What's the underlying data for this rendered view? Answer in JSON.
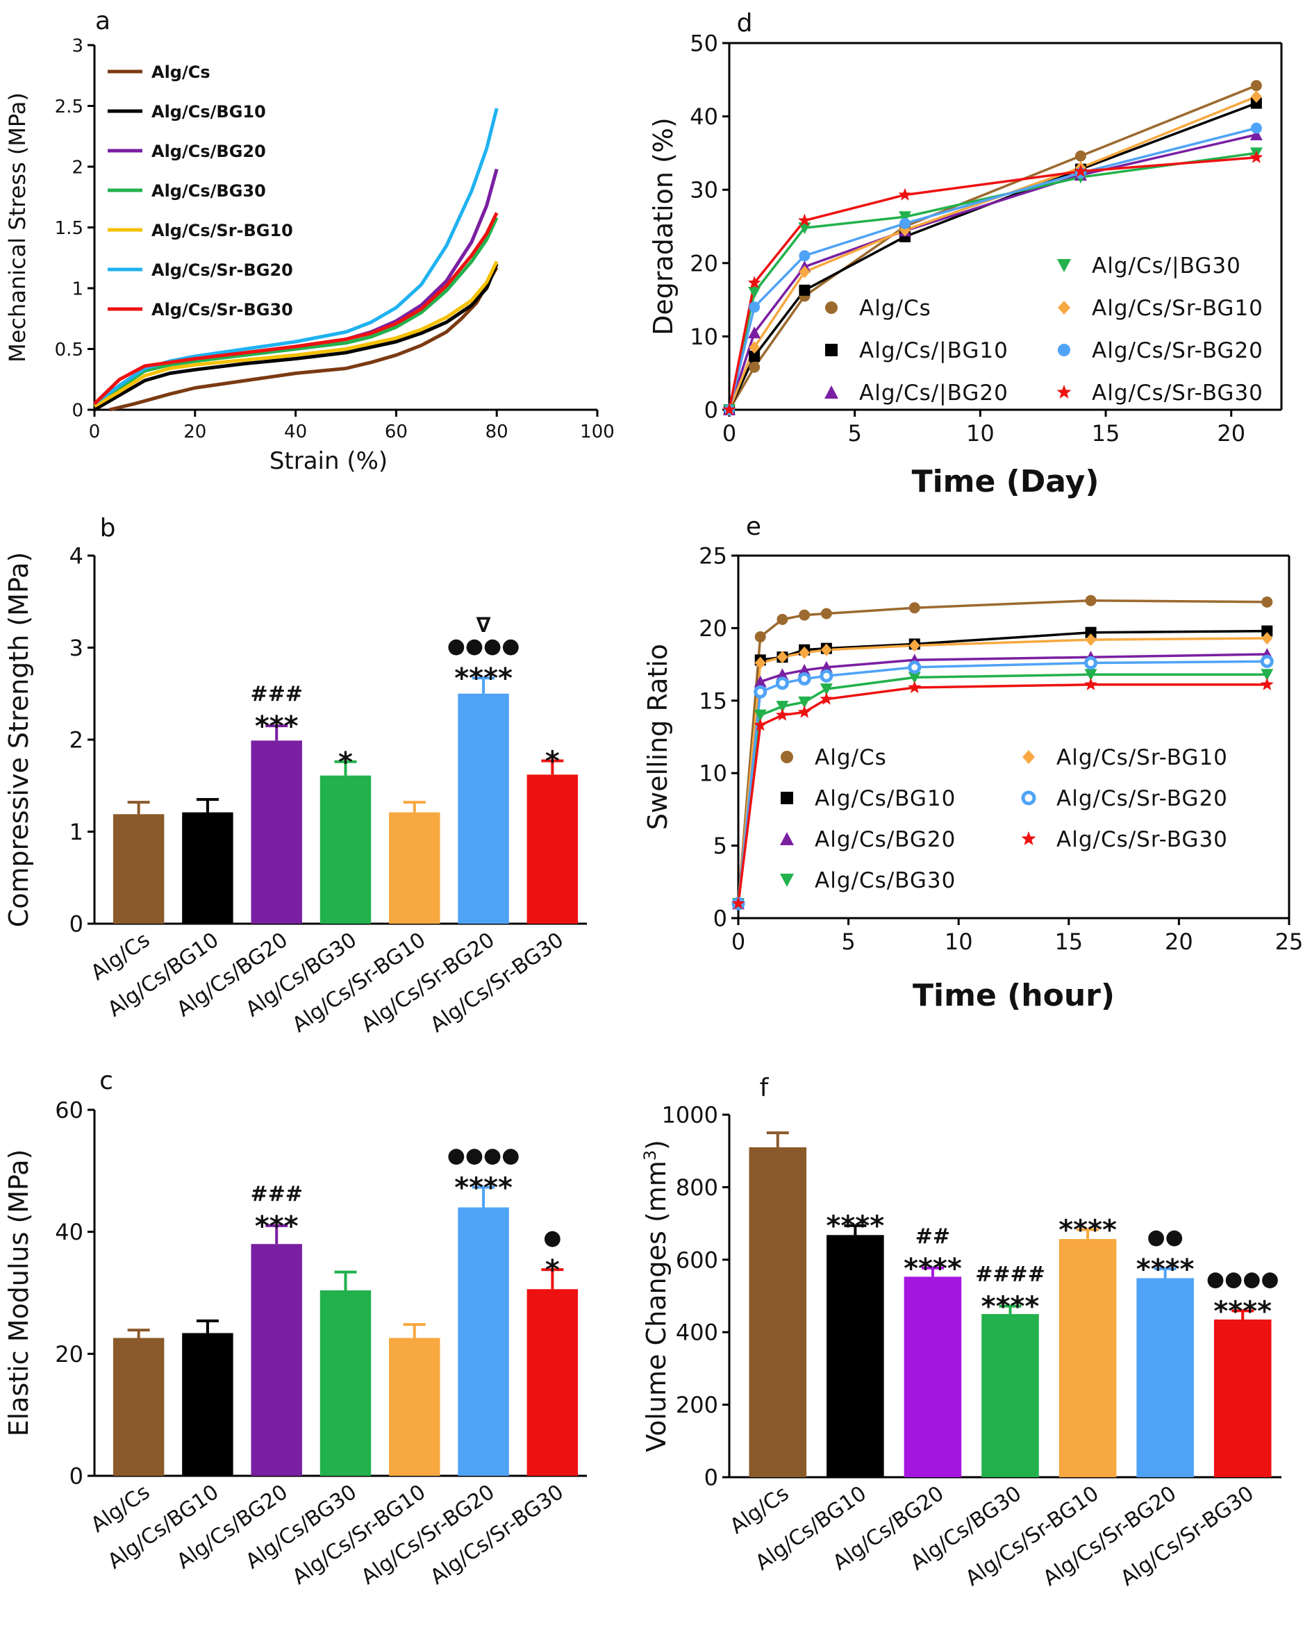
{
  "colors": {
    "Alg/Cs": "#8B5A2B",
    "Alg/Cs/BG10": "#000000",
    "Alg/Cs/BG20": "#7A1FA2",
    "Alg/Cs/BG30": "#22B14C",
    "Alg/Cs/Sr-BG10": "#F7A840",
    "Alg/Cs/Sr-BG20": "#4FA3F7",
    "Alg/Cs/Sr-BG30": "#EE1111",
    "stressLineBrown": "#7B3A12",
    "stressLineYellow": "#F5C000",
    "stressLineBlue": "#1FB2F0",
    "degradeBrown": "#9C6A2E",
    "f_BG20": "#A516E0"
  },
  "chart_data": [
    {
      "id": "a",
      "panel_label": "a",
      "type": "line",
      "xlabel": "Strain (%)",
      "ylabel": "Mechanical Stress (MPa)",
      "xlim": [
        0,
        100
      ],
      "ylim": [
        0,
        3
      ],
      "xticks": [
        "0",
        "20",
        "40",
        "60",
        "80",
        "100"
      ],
      "yticks": [
        "0",
        "0.5",
        "1",
        "1.5",
        "2",
        "2.5",
        "3"
      ],
      "legend": [
        "Alg/Cs",
        "Alg/Cs/BG10",
        "Alg/Cs/BG20",
        "Alg/Cs/BG30",
        "Alg/Cs/Sr-BG10",
        "Alg/Cs/Sr-BG20",
        "Alg/Cs/Sr-BG30"
      ],
      "series": [
        {
          "name": "Alg/Cs",
          "color_key": "stressLineBrown",
          "x": [
            3,
            8,
            15,
            20,
            30,
            40,
            50,
            55,
            60,
            65,
            70,
            73,
            76,
            80
          ],
          "y": [
            0,
            0.05,
            0.13,
            0.18,
            0.24,
            0.3,
            0.34,
            0.39,
            0.45,
            0.53,
            0.64,
            0.75,
            0.88,
            1.17
          ]
        },
        {
          "name": "Alg/Cs/BG10",
          "color_key": "Alg/Cs/BG10",
          "x": [
            0,
            5,
            10,
            15,
            20,
            30,
            40,
            50,
            60,
            65,
            70,
            75,
            78,
            80
          ],
          "y": [
            0,
            0.12,
            0.24,
            0.3,
            0.33,
            0.38,
            0.42,
            0.47,
            0.56,
            0.63,
            0.72,
            0.86,
            1.0,
            1.2
          ]
        },
        {
          "name": "Alg/Cs/BG20",
          "color_key": "Alg/Cs/BG20",
          "x": [
            0,
            5,
            10,
            15,
            20,
            30,
            40,
            50,
            55,
            60,
            65,
            70,
            75,
            78,
            80
          ],
          "y": [
            0.05,
            0.2,
            0.34,
            0.39,
            0.42,
            0.47,
            0.52,
            0.58,
            0.64,
            0.73,
            0.86,
            1.06,
            1.38,
            1.68,
            1.98
          ]
        },
        {
          "name": "Alg/Cs/BG30",
          "color_key": "Alg/Cs/BG30",
          "x": [
            0,
            5,
            10,
            15,
            20,
            30,
            40,
            50,
            55,
            60,
            65,
            70,
            75,
            78,
            80
          ],
          "y": [
            0.05,
            0.18,
            0.32,
            0.37,
            0.4,
            0.45,
            0.5,
            0.55,
            0.6,
            0.68,
            0.8,
            0.98,
            1.22,
            1.4,
            1.58
          ]
        },
        {
          "name": "Alg/Cs/Sr-BG10",
          "color_key": "stressLineYellow",
          "x": [
            0,
            5,
            10,
            15,
            20,
            30,
            40,
            50,
            60,
            65,
            70,
            75,
            78,
            80
          ],
          "y": [
            0.03,
            0.15,
            0.28,
            0.34,
            0.37,
            0.41,
            0.45,
            0.5,
            0.59,
            0.66,
            0.76,
            0.9,
            1.05,
            1.22
          ]
        },
        {
          "name": "Alg/Cs/Sr-BG20",
          "color_key": "stressLineBlue",
          "x": [
            0,
            5,
            10,
            15,
            20,
            30,
            40,
            50,
            55,
            60,
            65,
            70,
            75,
            78,
            80
          ],
          "y": [
            0.05,
            0.2,
            0.34,
            0.4,
            0.44,
            0.5,
            0.56,
            0.64,
            0.72,
            0.84,
            1.03,
            1.35,
            1.8,
            2.15,
            2.48
          ]
        },
        {
          "name": "Alg/Cs/Sr-BG30",
          "color_key": "Alg/Cs/Sr-BG30",
          "x": [
            0,
            5,
            10,
            15,
            20,
            30,
            40,
            50,
            55,
            60,
            65,
            70,
            75,
            78,
            80
          ],
          "y": [
            0.05,
            0.25,
            0.36,
            0.39,
            0.42,
            0.47,
            0.52,
            0.58,
            0.63,
            0.71,
            0.83,
            1.02,
            1.27,
            1.45,
            1.62
          ]
        }
      ]
    },
    {
      "id": "b",
      "panel_label": "b",
      "type": "bar",
      "ylabel": "Compressive Strength (MPa)",
      "ylim": [
        0,
        4
      ],
      "yticks": [
        "0",
        "1",
        "2",
        "3",
        "4"
      ],
      "categories": [
        "Alg/Cs",
        "Alg/Cs/BG10",
        "Alg/Cs/BG20",
        "Alg/Cs/BG30",
        "Alg/Cs/Sr-BG10",
        "Alg/Cs/Sr-BG20",
        "Alg/Cs/Sr-BG30"
      ],
      "values": [
        1.19,
        1.21,
        1.99,
        1.61,
        1.21,
        2.5,
        1.62
      ],
      "errors": [
        0.13,
        0.14,
        0.16,
        0.15,
        0.11,
        0.17,
        0.15
      ],
      "annotations": [
        [],
        [],
        [
          "###",
          "***"
        ],
        [
          "*"
        ],
        [],
        [
          "∇",
          "●●●●",
          "****"
        ],
        [
          "*"
        ]
      ]
    },
    {
      "id": "c",
      "panel_label": "c",
      "type": "bar",
      "ylabel": "Elastic Modulus (MPa)",
      "ylim": [
        0,
        60
      ],
      "yticks": [
        "0",
        "20",
        "40",
        "60"
      ],
      "categories": [
        "Alg/Cs",
        "Alg/Cs/BG10",
        "Alg/Cs/BG20",
        "Alg/Cs/BG30",
        "Alg/Cs/Sr-BG10",
        "Alg/Cs/Sr-BG20",
        "Alg/Cs/Sr-BG30"
      ],
      "values": [
        22.6,
        23.4,
        38.0,
        30.4,
        22.6,
        44.0,
        30.6
      ],
      "errors": [
        1.3,
        2.0,
        3.0,
        3.0,
        2.2,
        3.3,
        3.2
      ],
      "annotations": [
        [],
        [],
        [
          "###",
          "***"
        ],
        [],
        [],
        [
          "●●●●",
          "****"
        ],
        [
          "●",
          "*"
        ]
      ]
    },
    {
      "id": "d",
      "panel_label": "d",
      "type": "line",
      "xlabel": "Time (Day)",
      "ylabel": "Degradation (%)",
      "xlim": [
        0,
        22
      ],
      "ylim": [
        0,
        50
      ],
      "xticks": [
        "0",
        "5",
        "10",
        "15",
        "20"
      ],
      "xtick_values": [
        0,
        5,
        10,
        15,
        20
      ],
      "yticks": [
        "0",
        "10",
        "20",
        "30",
        "40",
        "50"
      ],
      "legend_left": [
        "Alg/Cs",
        "Alg/Cs/|BG10",
        "Alg/Cs/|BG20"
      ],
      "legend_right": [
        "Alg/Cs/|BG30",
        "Alg/Cs/Sr-BG10",
        "Alg/Cs/Sr-BG20",
        "Alg/Cs/Sr-BG30"
      ],
      "x": [
        0,
        1,
        3,
        7,
        14,
        21
      ],
      "series": [
        {
          "name": "Alg/Cs",
          "color_key": "degradeBrown",
          "marker": "circle",
          "values": [
            0,
            5.8,
            15.5,
            25.0,
            34.6,
            44.2
          ]
        },
        {
          "name": "Alg/Cs/|BG10",
          "color_key": "Alg/Cs/BG10",
          "marker": "square",
          "values": [
            0,
            7.3,
            16.3,
            23.6,
            32.8,
            41.8
          ]
        },
        {
          "name": "Alg/Cs/|BG20",
          "color_key": "Alg/Cs/BG20",
          "marker": "triangle",
          "values": [
            0,
            10.5,
            19.5,
            24.4,
            32.0,
            37.5
          ]
        },
        {
          "name": "Alg/Cs/|BG30",
          "color_key": "Alg/Cs/BG30",
          "marker": "triangle-down",
          "values": [
            0,
            16.0,
            24.8,
            26.3,
            31.7,
            35.0
          ]
        },
        {
          "name": "Alg/Cs/Sr-BG10",
          "color_key": "Alg/Cs/Sr-BG10",
          "marker": "diamond",
          "values": [
            0,
            8.5,
            18.8,
            24.5,
            33.0,
            42.7
          ]
        },
        {
          "name": "Alg/Cs/Sr-BG20",
          "color_key": "Alg/Cs/Sr-BG20",
          "marker": "circle",
          "values": [
            0,
            14.0,
            21.0,
            25.4,
            32.3,
            38.4
          ]
        },
        {
          "name": "Alg/Cs/Sr-BG30",
          "color_key": "Alg/Cs/Sr-BG30",
          "marker": "star",
          "values": [
            0,
            17.3,
            25.8,
            29.3,
            32.5,
            34.4
          ]
        }
      ]
    },
    {
      "id": "e",
      "panel_label": "e",
      "type": "line",
      "xlabel": "Time (hour)",
      "ylabel": "Swelling Ratio",
      "xlim": [
        0,
        25
      ],
      "ylim": [
        0,
        25
      ],
      "xticks": [
        "0",
        "5",
        "10",
        "15",
        "20",
        "25"
      ],
      "yticks": [
        "0",
        "5",
        "10",
        "15",
        "20",
        "25"
      ],
      "legend_left": [
        "Alg/Cs",
        "Alg/Cs/BG10",
        "Alg/Cs/BG20",
        "Alg/Cs/BG30"
      ],
      "legend_right": [
        "Alg/Cs/Sr-BG10",
        "Alg/Cs/Sr-BG20",
        "Alg/Cs/Sr-BG30"
      ],
      "x": [
        0,
        1,
        2,
        3,
        4,
        8,
        16,
        24
      ],
      "series": [
        {
          "name": "Alg/Cs",
          "color_key": "degradeBrown",
          "marker": "circle",
          "values": [
            1.0,
            19.4,
            20.6,
            20.9,
            21.0,
            21.4,
            21.9,
            21.8
          ]
        },
        {
          "name": "Alg/Cs/BG10",
          "color_key": "Alg/Cs/BG10",
          "marker": "square",
          "values": [
            1.0,
            17.8,
            18.0,
            18.5,
            18.6,
            18.9,
            19.7,
            19.8
          ]
        },
        {
          "name": "Alg/Cs/BG20",
          "color_key": "Alg/Cs/BG20",
          "marker": "triangle",
          "values": [
            1.0,
            16.3,
            16.8,
            17.1,
            17.3,
            17.8,
            18.0,
            18.2
          ]
        },
        {
          "name": "Alg/Cs/BG30",
          "color_key": "Alg/Cs/BG30",
          "marker": "triangle-down",
          "values": [
            1.0,
            14.0,
            14.6,
            14.9,
            15.8,
            16.6,
            16.8,
            16.8
          ]
        },
        {
          "name": "Alg/Cs/Sr-BG10",
          "color_key": "Alg/Cs/Sr-BG10",
          "marker": "diamond",
          "values": [
            1.0,
            17.6,
            18.0,
            18.3,
            18.5,
            18.8,
            19.2,
            19.3
          ]
        },
        {
          "name": "Alg/Cs/Sr-BG20",
          "color_key": "Alg/Cs/Sr-BG20",
          "marker": "ring",
          "values": [
            1.0,
            15.6,
            16.2,
            16.5,
            16.7,
            17.3,
            17.6,
            17.7
          ]
        },
        {
          "name": "Alg/Cs/Sr-BG30",
          "color_key": "Alg/Cs/Sr-BG30",
          "marker": "star",
          "values": [
            1.0,
            13.3,
            14.0,
            14.2,
            15.1,
            15.9,
            16.1,
            16.1
          ]
        }
      ]
    },
    {
      "id": "f",
      "panel_label": "f",
      "type": "bar",
      "ylabel": "Volume Changes (mm",
      "ylabel_sup": "3",
      "ylabel_close": ")",
      "ylim": [
        0,
        1000
      ],
      "yticks": [
        "0",
        "200",
        "400",
        "600",
        "800",
        "1000"
      ],
      "categories": [
        "Alg/Cs",
        "Alg/Cs/BG10",
        "Alg/Cs/BG20",
        "Alg/Cs/BG30",
        "Alg/Cs/Sr-BG10",
        "Alg/Cs/Sr-BG20",
        "Alg/Cs/Sr-BG30"
      ],
      "values": [
        910,
        668,
        553,
        450,
        657,
        549,
        435
      ],
      "errors": [
        40,
        26,
        24,
        22,
        26,
        26,
        24
      ],
      "bar_color_keys": [
        "Alg/Cs",
        "Alg/Cs/BG10",
        "f_BG20",
        "Alg/Cs/BG30",
        "Alg/Cs/Sr-BG10",
        "Alg/Cs/Sr-BG20",
        "Alg/Cs/Sr-BG30"
      ],
      "annotations": [
        [],
        [
          "****"
        ],
        [
          "##",
          "****"
        ],
        [
          "####",
          "****"
        ],
        [
          "****"
        ],
        [
          "●●",
          "****"
        ],
        [
          "●●●●",
          "****"
        ]
      ]
    }
  ]
}
